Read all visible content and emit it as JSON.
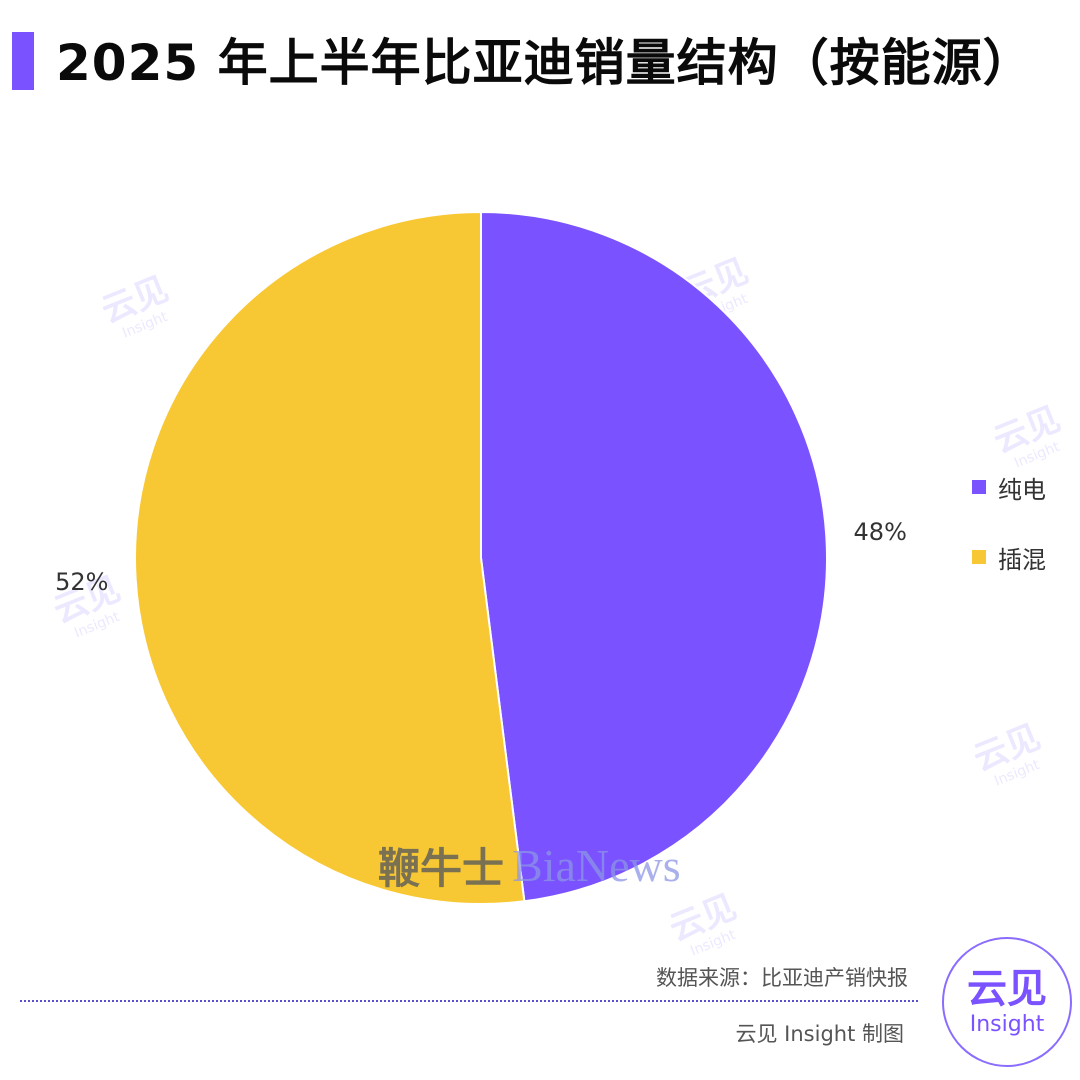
{
  "title": "2025 年上半年比亚迪销量结构（按能源）",
  "chart_data": {
    "type": "pie",
    "title": "2025 年上半年比亚迪销量结构（按能源）",
    "slices": [
      {
        "label": "纯电",
        "value": 48,
        "value_label": "48%",
        "color": "#7a52ff"
      },
      {
        "label": "插混",
        "value": 52,
        "value_label": "52%",
        "color": "#f8c834"
      }
    ],
    "start_angle_deg": 0,
    "direction": "clockwise",
    "legend_position": "right"
  },
  "source": "数据来源：比亚迪产销快报",
  "credit": "云见 Insight 制图",
  "watermark": {
    "center_cn": "鞭牛士",
    "center_en": "BiaNews",
    "tile_cn": "云见",
    "tile_en": "Insight"
  },
  "logo": {
    "cn": "云见",
    "en": "Insight"
  },
  "colors": {
    "accent": "#7a52ff",
    "pie_purple": "#7a52ff",
    "pie_yellow": "#f8c834"
  }
}
